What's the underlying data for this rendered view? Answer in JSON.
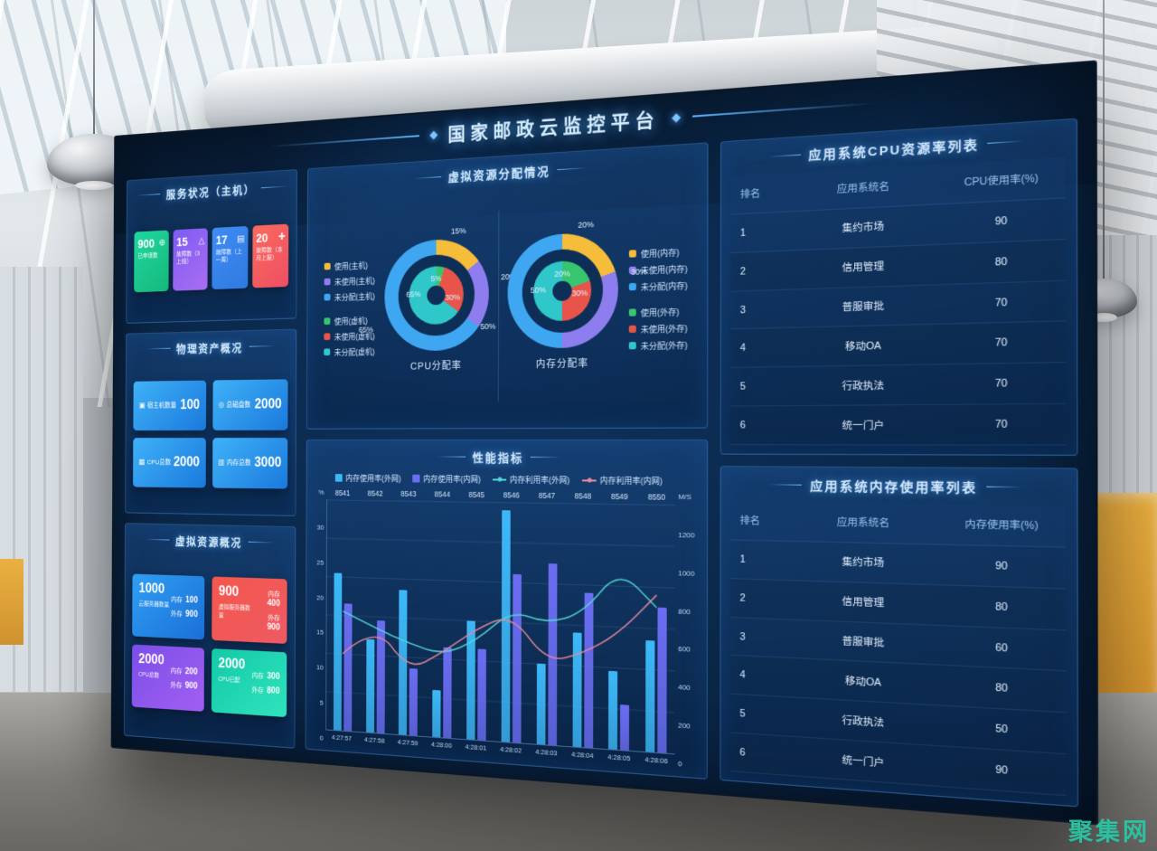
{
  "scene": {
    "watermark": "聚集网"
  },
  "header": {
    "title": "国家邮政云监控平台"
  },
  "panels": {
    "service": {
      "title": "服务状况（主机）",
      "cards": [
        {
          "value": "900",
          "label": "已申请数",
          "icon": "gear-icon",
          "from": "#1ed7a0",
          "to": "#17b87a"
        },
        {
          "value": "15",
          "label": "故障数（3 上线）",
          "icon": "alert-icon",
          "from": "#7e5cf2",
          "to": "#a96df2"
        },
        {
          "value": "17",
          "label": "故障数（上一周）",
          "icon": "list-icon",
          "from": "#3f8cf5",
          "to": "#2f7ae0"
        },
        {
          "value": "20",
          "label": "故障数（本月上报）",
          "icon": "tool-icon",
          "from": "#fa6a5d",
          "to": "#ee4f63"
        }
      ]
    },
    "physical": {
      "title": "物理资产概况",
      "card_from": "#3fb2f7",
      "card_to": "#1a79dd",
      "cards": [
        {
          "label": "宿主机数量",
          "value": "100",
          "icon": "host-icon"
        },
        {
          "label": "总磁盘数",
          "value": "2000",
          "icon": "disk-icon"
        },
        {
          "label": "CPU总数",
          "value": "2000",
          "icon": "cpu-icon"
        },
        {
          "label": "内存总数",
          "value": "3000",
          "icon": "memory-icon"
        }
      ]
    },
    "virtual": {
      "title": "虚拟资源概况",
      "cards": [
        {
          "value": "1000",
          "label": "云服务器数量",
          "from": "#2f9ff2",
          "to": "#1b6fd8",
          "stats": [
            {
              "k": "内存",
              "v": "100"
            },
            {
              "k": "外存",
              "v": "900"
            }
          ]
        },
        {
          "value": "900",
          "label": "虚拟服务器数量",
          "from": "#f4574c",
          "to": "#ee5a63",
          "stats": [
            {
              "k": "内存",
              "v": "400"
            },
            {
              "k": "外存",
              "v": "900"
            }
          ]
        },
        {
          "value": "2000",
          "label": "CPU总数",
          "from": "#7a4fe8",
          "to": "#a35ef2",
          "stats": [
            {
              "k": "内存",
              "v": "200"
            },
            {
              "k": "外存",
              "v": "900"
            }
          ]
        },
        {
          "value": "2000",
          "label": "CPU已配",
          "from": "#13c9a7",
          "to": "#2fe3bd",
          "stats": [
            {
              "k": "内存",
              "v": "300"
            },
            {
              "k": "外存",
              "v": "800"
            }
          ]
        }
      ]
    },
    "allocation": {
      "title": "虚拟资源分配情况"
    },
    "performance": {
      "title": "性能指标"
    },
    "cpu_table": {
      "title": "应用系统CPU资源率列表",
      "columns": [
        "排名",
        "应用系统名",
        "CPU使用率(%)"
      ],
      "rows": [
        [
          "1",
          "集约市场",
          "90"
        ],
        [
          "2",
          "信用管理",
          "80"
        ],
        [
          "3",
          "普服审批",
          "70"
        ],
        [
          "4",
          "移动OA",
          "70"
        ],
        [
          "5",
          "行政执法",
          "70"
        ],
        [
          "6",
          "统一门户",
          "70"
        ]
      ]
    },
    "mem_table": {
      "title": "应用系统内存使用率列表",
      "columns": [
        "排名",
        "应用系统名",
        "内存使用率(%)"
      ],
      "rows": [
        [
          "1",
          "集约市场",
          "90"
        ],
        [
          "2",
          "信用管理",
          "80"
        ],
        [
          "3",
          "普服审批",
          "60"
        ],
        [
          "4",
          "移动OA",
          "80"
        ],
        [
          "5",
          "行政执法",
          "50"
        ],
        [
          "6",
          "统一门户",
          "90"
        ]
      ]
    }
  },
  "chart_data": [
    {
      "type": "pie",
      "name": "CPU分配率",
      "legend_position": "left",
      "rings": {
        "outer": [
          {
            "label": "使用(主机)",
            "value": 15,
            "color": "#f6bd3a",
            "pos": "top"
          },
          {
            "label": "未使用(主机)",
            "value": 20,
            "color": "#8e7dee",
            "pos": "right"
          },
          {
            "label": "未分配(主机)",
            "value": 65,
            "color": "#3fa7f2",
            "pos": "left"
          }
        ],
        "inner": [
          {
            "label": "使用(虚机)",
            "value": 5,
            "color": "#38c56f",
            "pos": "in-top"
          },
          {
            "label": "未使用(虚机)",
            "value": 30,
            "color": "#e85449",
            "pos": "in-right"
          },
          {
            "label": "未分配(虚机)",
            "value": 65,
            "color": "#2fc7c9",
            "pos": "in-left"
          }
        ]
      }
    },
    {
      "type": "pie",
      "name": "内存分配率",
      "legend_position": "right",
      "rings": {
        "outer": [
          {
            "label": "使用(内存)",
            "value": 20,
            "color": "#f6bd3a",
            "pos": "top"
          },
          {
            "label": "未使用(内存)",
            "value": 30,
            "color": "#8e7dee",
            "pos": "right"
          },
          {
            "label": "未分配(内存)",
            "value": 50,
            "color": "#3fa7f2",
            "pos": "left"
          }
        ],
        "inner": [
          {
            "label": "使用(外存)",
            "value": 20,
            "color": "#38c56f",
            "pos": "in-top"
          },
          {
            "label": "未使用(外存)",
            "value": 30,
            "color": "#e85449",
            "pos": "in-right"
          },
          {
            "label": "未分配(外存)",
            "value": 50,
            "color": "#2fc7c9",
            "pos": "in-left"
          }
        ]
      }
    },
    {
      "type": "bar",
      "title": "性能指标",
      "unit": "M/S",
      "x": [
        "4:27:57",
        "4:27:58",
        "4:27:59",
        "4:28:00",
        "4:28:01",
        "4:28:02",
        "4:28:03",
        "4:28:04",
        "4:28:05",
        "4:28:06"
      ],
      "top_labels": [
        "8541",
        "8542",
        "8543",
        "8544",
        "8545",
        "8546",
        "8547",
        "8548",
        "8549",
        "8550"
      ],
      "left_axis": {
        "label": "%",
        "min": 0,
        "max": 30,
        "step": 5
      },
      "right_axis": {
        "min": 0,
        "max": 1200,
        "step": 200
      },
      "grid": true,
      "series": [
        {
          "name": "内存使用率(外网)",
          "type": "bar",
          "axis": "left",
          "color": "#3db8f7",
          "values": [
            20.5,
            12,
            18.5,
            6,
            15,
            29,
            10,
            14,
            9.5,
            13.5
          ]
        },
        {
          "name": "内存使用率(内网)",
          "type": "bar",
          "axis": "left",
          "color": "#6b6df2",
          "values": [
            16.5,
            14.5,
            8.5,
            11.5,
            11.5,
            21,
            22.5,
            19,
            5.5,
            17.5
          ]
        },
        {
          "name": "内存利用率(外网)",
          "type": "line",
          "axis": "right",
          "color": "#52d8d2",
          "values": [
            620,
            540,
            470,
            420,
            500,
            660,
            600,
            660,
            880,
            700
          ]
        },
        {
          "name": "内存利用率(内网)",
          "type": "line",
          "axis": "right",
          "color": "#e88a9a",
          "values": [
            400,
            560,
            330,
            430,
            560,
            640,
            410,
            460,
            570,
            760
          ]
        }
      ]
    }
  ]
}
